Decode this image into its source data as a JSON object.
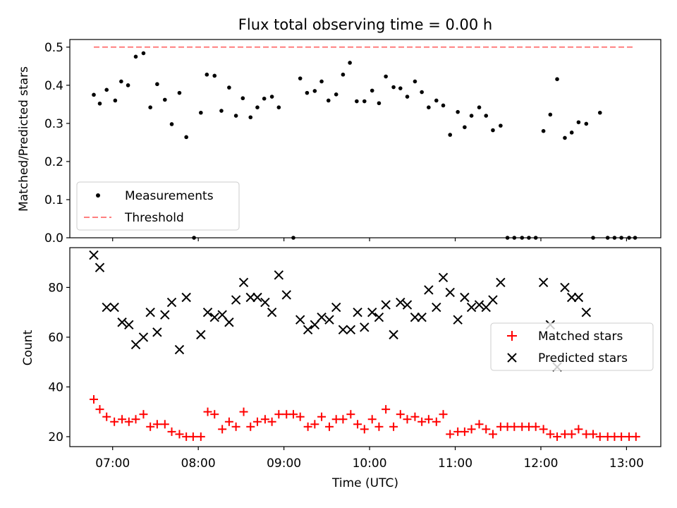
{
  "chart_data": {
    "title": "Flux total observing time = 0.00 h",
    "xlabel": "Time (UTC)",
    "x_ticks": [
      "07:00",
      "08:00",
      "09:00",
      "10:00",
      "11:00",
      "12:00",
      "13:00"
    ],
    "x_tick_values_h": [
      7,
      8,
      9,
      10,
      11,
      12,
      13
    ],
    "xlim_h": [
      6.5,
      13.4
    ],
    "panels": [
      {
        "type": "scatter",
        "ylabel": "Matched/Predicted stars",
        "ylim": [
          0,
          0.52
        ],
        "y_ticks": [
          "0.0",
          "0.1",
          "0.2",
          "0.3",
          "0.4",
          "0.5"
        ],
        "y_tick_values": [
          0,
          0.1,
          0.2,
          0.3,
          0.4,
          0.5
        ],
        "legend": {
          "placement": "lower-left",
          "entries": [
            "Measurements",
            "Threshold"
          ]
        },
        "threshold": {
          "name": "Threshold",
          "value": 0.5,
          "x_range_h": [
            6.78,
            13.1
          ],
          "color": "#ff7f7f"
        },
        "measurements": {
          "name": "Measurements",
          "color": "#000000",
          "x_h": [
            6.78,
            6.85,
            6.93,
            7.03,
            7.1,
            7.18,
            7.27,
            7.36,
            7.44,
            7.52,
            7.61,
            7.69,
            7.78,
            7.86,
            7.95,
            8.03,
            8.1,
            8.19,
            8.27,
            8.36,
            8.44,
            8.52,
            8.61,
            8.69,
            8.77,
            8.86,
            8.94,
            9.11,
            9.19,
            9.27,
            9.36,
            9.44,
            9.52,
            9.61,
            9.69,
            9.77,
            9.85,
            9.94,
            10.03,
            10.11,
            10.19,
            10.28,
            10.36,
            10.44,
            10.53,
            10.61,
            10.69,
            10.78,
            10.86,
            10.94,
            11.03,
            11.11,
            11.19,
            11.28,
            11.36,
            11.44,
            11.53,
            11.61,
            11.69,
            11.78,
            11.86,
            11.94,
            12.03,
            12.11,
            12.19,
            12.28,
            12.36,
            12.44,
            12.53,
            12.61,
            12.69,
            12.78,
            12.86,
            12.94,
            13.03,
            13.1
          ],
          "y": [
            0.375,
            0.352,
            0.388,
            0.36,
            0.41,
            0.4,
            0.475,
            0.484,
            0.342,
            0.403,
            0.362,
            0.298,
            0.38,
            0.264,
            0.0,
            0.328,
            0.428,
            0.425,
            0.333,
            0.394,
            0.32,
            0.366,
            0.316,
            0.342,
            0.365,
            0.37,
            0.342,
            0.0,
            0.418,
            0.38,
            0.385,
            0.41,
            0.36,
            0.376,
            0.428,
            0.459,
            0.358,
            0.358,
            0.386,
            0.353,
            0.423,
            0.395,
            0.392,
            0.37,
            0.41,
            0.382,
            0.342,
            0.36,
            0.347,
            0.27,
            0.33,
            0.29,
            0.32,
            0.342,
            0.32,
            0.282,
            0.294,
            0.0,
            0.0,
            0.0,
            0.0,
            0.0,
            0.28,
            0.323,
            0.416,
            0.262,
            0.276,
            0.303,
            0.299,
            0.0,
            0.328,
            0.0,
            0.0,
            0.0,
            0.0,
            0.0
          ]
        }
      },
      {
        "type": "scatter",
        "ylabel": "Count",
        "ylim": [
          16,
          96
        ],
        "y_ticks": [
          "20",
          "40",
          "60",
          "80"
        ],
        "y_tick_values": [
          20,
          40,
          60,
          80
        ],
        "legend": {
          "placement": "center-right",
          "entries": [
            "Matched stars",
            "Predicted stars"
          ]
        },
        "series": [
          {
            "name": "Matched stars",
            "marker": "+",
            "color": "#ff0000",
            "x_h": [
              6.78,
              6.85,
              6.93,
              7.02,
              7.11,
              7.19,
              7.27,
              7.36,
              7.44,
              7.52,
              7.61,
              7.69,
              7.78,
              7.86,
              7.94,
              8.03,
              8.11,
              8.19,
              8.28,
              8.36,
              8.44,
              8.53,
              8.61,
              8.69,
              8.78,
              8.86,
              8.94,
              9.03,
              9.11,
              9.19,
              9.28,
              9.36,
              9.44,
              9.53,
              9.61,
              9.69,
              9.78,
              9.86,
              9.94,
              10.03,
              10.11,
              10.19,
              10.28,
              10.36,
              10.44,
              10.53,
              10.61,
              10.69,
              10.78,
              10.86,
              10.94,
              11.03,
              11.11,
              11.19,
              11.28,
              11.36,
              11.44,
              11.53,
              11.61,
              11.69,
              11.78,
              11.86,
              11.94,
              12.03,
              12.11,
              12.19,
              12.28,
              12.36,
              12.44,
              12.53,
              12.61,
              12.69,
              12.78,
              12.86,
              12.94,
              13.03,
              13.11
            ],
            "y": [
              35,
              31,
              28,
              26,
              27,
              26,
              27,
              29,
              24,
              25,
              25,
              22,
              21,
              20,
              20,
              20,
              30,
              29,
              23,
              26,
              24,
              30,
              24,
              26,
              27,
              26,
              29,
              29,
              29,
              28,
              24,
              25,
              28,
              24,
              27,
              27,
              29,
              25,
              23,
              27,
              24,
              31,
              24,
              29,
              27,
              28,
              26,
              27,
              26,
              29,
              21,
              22,
              22,
              23,
              25,
              23,
              21,
              24,
              24,
              24,
              24,
              24,
              24,
              23,
              21,
              20,
              21,
              21,
              23,
              21,
              21,
              20,
              20,
              20,
              20,
              20,
              20
            ]
          },
          {
            "name": "Predicted stars",
            "marker": "x",
            "color": "#000000",
            "x_h": [
              6.78,
              6.85,
              6.93,
              7.02,
              7.11,
              7.19,
              7.27,
              7.36,
              7.44,
              7.52,
              7.61,
              7.69,
              7.78,
              7.86,
              8.03,
              8.11,
              8.19,
              8.28,
              8.36,
              8.44,
              8.53,
              8.61,
              8.69,
              8.78,
              8.86,
              8.94,
              9.03,
              9.19,
              9.28,
              9.36,
              9.44,
              9.53,
              9.61,
              9.69,
              9.78,
              9.86,
              9.94,
              10.03,
              10.11,
              10.19,
              10.28,
              10.36,
              10.44,
              10.53,
              10.61,
              10.69,
              10.78,
              10.86,
              10.94,
              11.03,
              11.11,
              11.19,
              11.28,
              11.36,
              11.44,
              11.53,
              12.03,
              12.11,
              12.19,
              12.28,
              12.36,
              12.44,
              12.53
            ],
            "y": [
              93,
              88,
              72,
              72,
              66,
              65,
              57,
              60,
              70,
              62,
              69,
              74,
              55,
              76,
              61,
              70,
              68,
              69,
              66,
              75,
              82,
              76,
              76,
              74,
              70,
              85,
              77,
              67,
              63,
              65,
              68,
              67,
              72,
              63,
              63,
              70,
              64,
              70,
              68,
              73,
              61,
              74,
              73,
              68,
              68,
              79,
              72,
              84,
              78,
              67,
              76,
              72,
              73,
              72,
              75,
              82,
              82,
              65,
              48,
              80,
              76,
              76,
              70
            ]
          }
        ]
      }
    ]
  }
}
